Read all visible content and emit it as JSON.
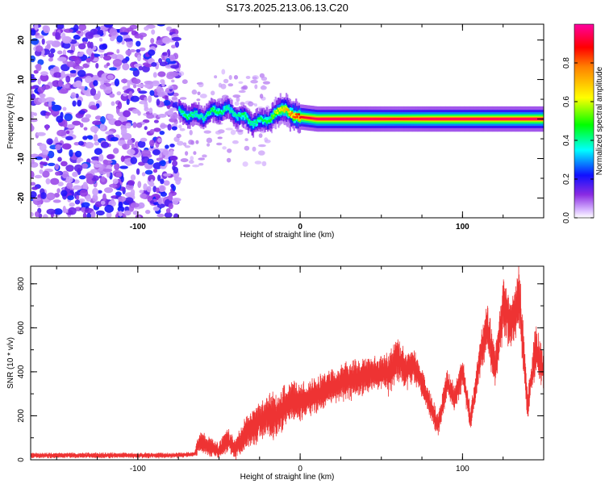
{
  "title": "S173.2025.213.06.13.C20",
  "colors": {
    "snr_line": "#ee3333",
    "axis": "#000000"
  },
  "chart_data": [
    {
      "type": "heatmap",
      "title": "S173.2025.213.06.13.C20",
      "xlabel": "Height of straight line (km)",
      "ylabel": "Frequency (Hz)",
      "xlim": [
        -166,
        150
      ],
      "ylim": [
        -25,
        24
      ],
      "x_ticks": [
        "-100",
        "0",
        "100"
      ],
      "y_ticks": [
        "20",
        "10",
        "0",
        "-10",
        "-20"
      ],
      "colorbar": {
        "label": "Normalized spectral amplitude",
        "range": [
          0,
          1
        ],
        "ticks": [
          "0.0",
          "0.2",
          "0.4",
          "0.6",
          "0.8"
        ],
        "colormap": "rainbow"
      },
      "ridge": {
        "x": [
          -75,
          -70,
          -65,
          -60,
          -55,
          -50,
          -45,
          -40,
          -35,
          -30,
          -25,
          -20,
          -15,
          -10,
          -5,
          0,
          10,
          20,
          40,
          60,
          80,
          100,
          120,
          150
        ],
        "freq": [
          2.5,
          0.5,
          1.5,
          0.0,
          2.5,
          1.5,
          3.0,
          0.5,
          1.0,
          -1.5,
          0.0,
          -0.5,
          2.0,
          2.5,
          1.0,
          0.5,
          0.0,
          0.0,
          0.0,
          0.0,
          0.0,
          0.0,
          0.0,
          0.0
        ],
        "peak_amplitude": [
          0.4,
          0.45,
          0.4,
          0.4,
          0.45,
          0.45,
          0.4,
          0.4,
          0.45,
          0.4,
          0.45,
          0.45,
          0.6,
          0.7,
          0.8,
          0.9,
          0.95,
          0.95,
          0.95,
          0.92,
          0.95,
          0.95,
          0.95,
          0.95
        ]
      },
      "noise_region_x": [
        -166,
        -75
      ],
      "noise_amplitude": [
        0.05,
        0.25
      ]
    },
    {
      "type": "line",
      "xlabel": "Height of straight line (km)",
      "ylabel": "SNR (10 * v/v)",
      "xlim": [
        -166,
        150
      ],
      "ylim": [
        0,
        880
      ],
      "x_ticks": [
        "-100",
        "0",
        "100"
      ],
      "y_ticks": [
        "0",
        "200",
        "400",
        "600",
        "800"
      ],
      "series": [
        {
          "x": [
            -166,
            -140,
            -110,
            -80,
            -65,
            -62,
            -55,
            -50,
            -45,
            -40,
            -35,
            -30,
            -25,
            -20,
            -15,
            -10,
            -5,
            0,
            10,
            20,
            30,
            40,
            50,
            55,
            60,
            65,
            70,
            75,
            80,
            85,
            90,
            95,
            100,
            105,
            110,
            115,
            120,
            125,
            130,
            135,
            140,
            145,
            150
          ],
          "y": [
            20,
            20,
            20,
            20,
            25,
            80,
            60,
            40,
            90,
            50,
            110,
            140,
            170,
            200,
            200,
            240,
            260,
            260,
            300,
            330,
            360,
            380,
            400,
            390,
            460,
            400,
            430,
            350,
            250,
            150,
            350,
            280,
            400,
            180,
            430,
            600,
            420,
            700,
            620,
            740,
            250,
            500,
            400
          ],
          "amplitude": [
            12,
            12,
            12,
            12,
            10,
            50,
            40,
            35,
            55,
            45,
            70,
            80,
            90,
            90,
            100,
            100,
            90,
            80,
            80,
            80,
            80,
            80,
            80,
            90,
            100,
            80,
            70,
            60,
            60,
            50,
            70,
            60,
            70,
            50,
            80,
            110,
            90,
            130,
            110,
            140,
            70,
            100,
            90
          ]
        }
      ]
    }
  ]
}
